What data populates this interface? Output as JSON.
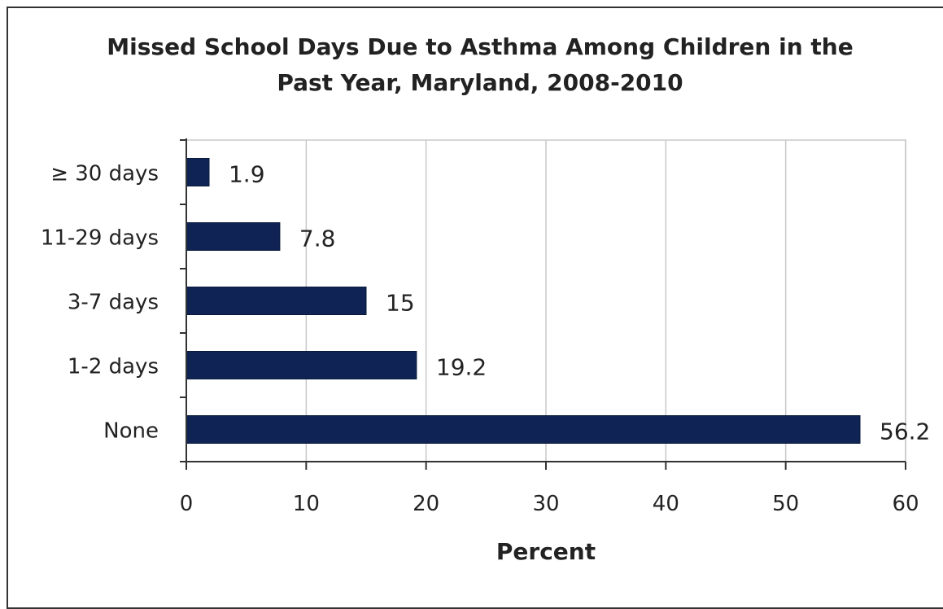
{
  "chart_data": {
    "type": "bar",
    "orientation": "horizontal",
    "title_line1": "Missed School Days Due to Asthma Among Children in the",
    "title_line2": "Past Year, Maryland, 2008-2010",
    "categories": [
      "≥ 30 days",
      "11-29 days",
      "3-7 days",
      "1-2 days",
      "None"
    ],
    "values": [
      1.9,
      7.8,
      15,
      19.2,
      56.2
    ],
    "value_labels": [
      "1.9",
      "7.8",
      "15",
      "19.2",
      "56.2"
    ],
    "xlabel": "Percent",
    "ylabel": "",
    "xlim": [
      0,
      60
    ],
    "xticks": [
      "0",
      "10",
      "20",
      "30",
      "40",
      "50",
      "60"
    ],
    "grid": "vertical",
    "legend": "none",
    "bar_color": "#0f2454",
    "grid_color": "#c8c8c8"
  }
}
